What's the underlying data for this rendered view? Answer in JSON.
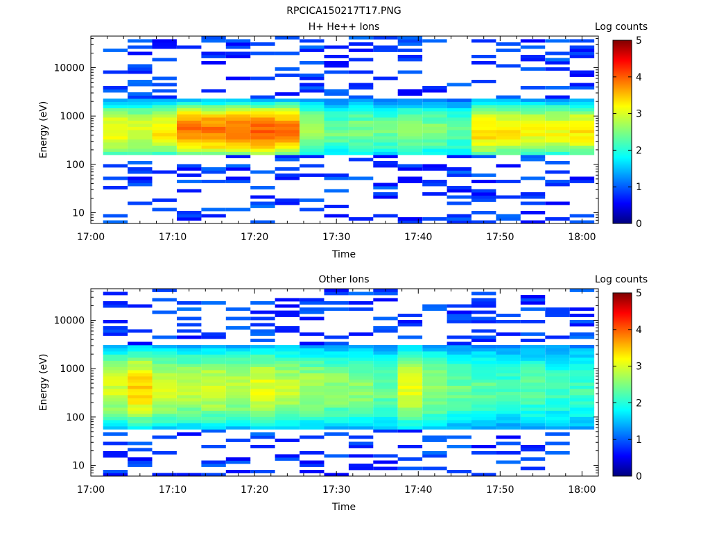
{
  "figure_title": "RPCICA150217T17.PNG",
  "chart_data": [
    {
      "type": "heatmap",
      "title": "H+ He++ Ions",
      "xlabel": "Time",
      "ylabel": "Energy (eV)",
      "y_scale": "log",
      "ylim": [
        6,
        45000
      ],
      "xlim": [
        "17:00",
        "18:02"
      ],
      "x_ticks": [
        "17:00",
        "17:10",
        "17:20",
        "17:30",
        "17:40",
        "17:50",
        "18:00"
      ],
      "y_ticks": [
        "10",
        "100",
        "1000",
        "10000"
      ],
      "colorbar": {
        "label": "Log counts",
        "range": [
          0,
          5
        ],
        "ticks": [
          "0",
          "1",
          "2",
          "3",
          "4",
          "5"
        ],
        "colormap": "jet"
      },
      "time_bins": [
        "17:03",
        "17:06",
        "17:09",
        "17:12",
        "17:15",
        "17:18",
        "17:21",
        "17:24",
        "17:27",
        "17:30",
        "17:33",
        "17:36",
        "17:39",
        "17:42",
        "17:45",
        "17:48",
        "17:51",
        "17:54",
        "17:57",
        "18:00"
      ],
      "core_energy_range": [
        150,
        2200
      ],
      "peak_energy": 500,
      "peak_log_counts": [
        3.1,
        3.0,
        3.2,
        3.8,
        3.8,
        3.9,
        3.9,
        3.8,
        2.7,
        2.4,
        2.5,
        2.4,
        2.6,
        2.5,
        2.3,
        3.3,
        3.2,
        3.1,
        3.1,
        3.2
      ],
      "notes": "Sparse isolated counts (~1 log count) at all energies above and below the core band"
    },
    {
      "type": "heatmap",
      "title": "Other Ions",
      "xlabel": "Time",
      "ylabel": "Energy (eV)",
      "y_scale": "log",
      "ylim": [
        6,
        45000
      ],
      "xlim": [
        "17:00",
        "18:02"
      ],
      "x_ticks": [
        "17:00",
        "17:10",
        "17:20",
        "17:30",
        "17:40",
        "17:50",
        "18:00"
      ],
      "y_ticks": [
        "10",
        "100",
        "1000",
        "10000"
      ],
      "colorbar": {
        "label": "Log counts",
        "range": [
          0,
          5
        ],
        "ticks": [
          "0",
          "1",
          "2",
          "3",
          "4",
          "5"
        ],
        "colormap": "jet"
      },
      "time_bins": [
        "17:03",
        "17:06",
        "17:09",
        "17:12",
        "17:15",
        "17:18",
        "17:21",
        "17:24",
        "17:27",
        "17:30",
        "17:33",
        "17:36",
        "17:39",
        "17:42",
        "17:45",
        "17:48",
        "17:51",
        "17:54",
        "17:57",
        "18:00"
      ],
      "core_energy_range": [
        60,
        3000
      ],
      "peak_energy": 400,
      "peak_log_counts": [
        2.9,
        3.3,
        2.9,
        2.8,
        2.9,
        2.8,
        3.0,
        2.8,
        2.7,
        2.6,
        2.6,
        2.4,
        3.0,
        2.6,
        2.4,
        2.3,
        2.2,
        2.3,
        2.2,
        2.2
      ],
      "notes": "Broad band of ~2-3 log counts; sparse blue counts above 3000 eV and below 60 eV"
    }
  ]
}
